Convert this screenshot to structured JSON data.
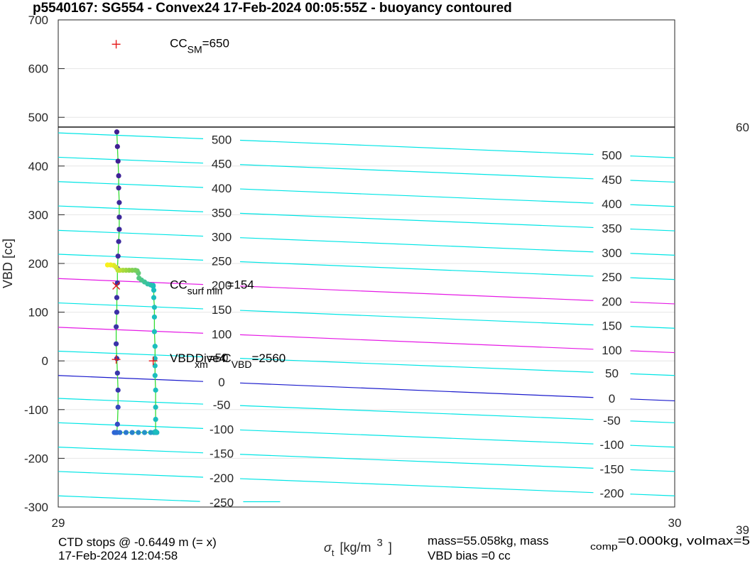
{
  "chart_data": {
    "type": "scatter",
    "title": "p5540167: SG554 - Convex24 17-Feb-2024 00:05:55Z - buoyancy contoured",
    "xlabel": {
      "sym": "σ",
      "sub": "t",
      "unit": "[kg/m",
      "sup": "3",
      "close": "]"
    },
    "ylabel": "VBD [cc]",
    "xlim": [
      29,
      30
    ],
    "ylim": [
      -300,
      700
    ],
    "x_ticks": [
      29,
      30
    ],
    "y_ticks": [
      -300,
      -200,
      -100,
      0,
      100,
      200,
      300,
      400,
      500,
      600,
      700
    ],
    "grid": true,
    "right_axis_partial": {
      "top": "60",
      "bottom": "39"
    },
    "neutral_line_vbd": 480,
    "buoyancy_contours": [
      {
        "label": "-250",
        "left_y": -277,
        "right_y": -327,
        "color": "#00e5e5"
      },
      {
        "label": "-200",
        "left_y": -227,
        "right_y": -277,
        "color": "#00e5e5"
      },
      {
        "label": "-150",
        "left_y": -177,
        "right_y": -227,
        "color": "#00e5e5"
      },
      {
        "label": "-100",
        "left_y": -127,
        "right_y": -177,
        "color": "#00e5e5"
      },
      {
        "label": "-50",
        "left_y": -77,
        "right_y": -127,
        "color": "#00e5e5"
      },
      {
        "label": "0",
        "left_y": -30,
        "right_y": -82,
        "color": "#1a1acc"
      },
      {
        "label": "50",
        "left_y": 20,
        "right_y": -30,
        "color": "#00e5e5"
      },
      {
        "label": "100",
        "left_y": 69,
        "right_y": 17,
        "color": "#e51ae5"
      },
      {
        "label": "150",
        "left_y": 119,
        "right_y": 67,
        "color": "#00e5e5"
      },
      {
        "label": "200",
        "left_y": 169,
        "right_y": 117,
        "color": "#e51ae5"
      },
      {
        "label": "250",
        "left_y": 219,
        "right_y": 167,
        "color": "#00e5e5"
      },
      {
        "label": "300",
        "left_y": 268,
        "right_y": 217,
        "color": "#00e5e5"
      },
      {
        "label": "350",
        "left_y": 318,
        "right_y": 267,
        "color": "#00e5e5"
      },
      {
        "label": "400",
        "left_y": 368,
        "right_y": 317,
        "color": "#00e5e5"
      },
      {
        "label": "450",
        "left_y": 418,
        "right_y": 367,
        "color": "#00e5e5"
      },
      {
        "label": "500",
        "left_y": 468,
        "right_y": 417,
        "color": "#00e5e5"
      }
    ],
    "profile_descent": {
      "x": [
        29.095,
        29.096,
        29.097,
        29.098,
        29.098,
        29.099,
        29.099,
        29.099,
        29.098,
        29.097,
        29.096,
        29.096,
        29.095,
        29.095,
        29.094,
        29.094,
        29.095,
        29.096,
        29.097
      ],
      "y": [
        470,
        440,
        410,
        380,
        355,
        325,
        295,
        270,
        245,
        215,
        190,
        160,
        130,
        100,
        70,
        35,
        5,
        -25,
        -60
      ]
    },
    "profile_bottom": {
      "x": [
        29.097,
        29.096,
        29.095,
        29.093,
        29.092,
        29.091,
        29.093,
        29.1,
        29.11,
        29.12,
        29.13,
        29.14,
        29.15,
        29.155,
        29.158,
        29.16
      ],
      "y": [
        -95,
        -130,
        -147,
        -147,
        -147,
        -147,
        -147,
        -147,
        -147,
        -147,
        -147,
        -147,
        -147,
        -147,
        -147,
        -147
      ]
    },
    "profile_ascent": {
      "x": [
        29.158,
        29.158,
        29.158,
        29.158,
        29.157,
        29.157,
        29.157,
        29.157,
        29.156,
        29.156,
        29.156,
        29.155,
        29.155,
        29.154
      ],
      "y": [
        -145,
        -120,
        -95,
        -60,
        -30,
        -10,
        5,
        30,
        60,
        90,
        110,
        130,
        145,
        153
      ]
    },
    "profile_surface": {
      "x": [
        29.154,
        29.15,
        29.145,
        29.14,
        29.135,
        29.131,
        29.13,
        29.128,
        29.125,
        29.12,
        29.115,
        29.11,
        29.105,
        29.1,
        29.097,
        29.094,
        29.09,
        29.085,
        29.08
      ],
      "y": [
        155,
        156,
        158,
        162,
        166,
        170,
        180,
        185,
        186,
        186,
        186,
        186,
        186,
        186,
        186,
        192,
        196,
        197,
        197
      ]
    },
    "markers": [
      {
        "type": "plus",
        "x": 29.094,
        "y": 650,
        "color": "#e51a1a"
      },
      {
        "type": "x",
        "x": 29.094,
        "y": 154,
        "color": "#e51a1a"
      },
      {
        "type": "plus",
        "x": 29.094,
        "y": 3,
        "color": "#e51a1a"
      },
      {
        "type": "plus",
        "x": 29.154,
        "y": 0,
        "color": "#e51a1a"
      }
    ],
    "annotations": [
      {
        "x": 29.181,
        "y": 650,
        "main": "CC",
        "sub": "SM",
        "rest": "=650"
      },
      {
        "x": 29.181,
        "y": 154,
        "main": "CC",
        "sub": "surf min",
        "rest": "=154"
      },
      {
        "x": 29.181,
        "y": 3,
        "main": "VBD",
        "sub": "xm",
        "rest": "=-4"
      },
      {
        "x": 29.222,
        "y": 3,
        "main": "Dive C",
        "sub": "VBD",
        "rest": "=2560"
      }
    ],
    "footer": {
      "line1_left": "CTD stops @ -0.6449 m (= x)",
      "line2_left": "17-Feb-2024 12:04:58",
      "mass_text": "mass=55.058kg, mass",
      "comp_sub": "comp",
      "comp_rest": "=0.000kg, volmax=5",
      "vbd_bias": "VBD bias =0 cc"
    }
  }
}
